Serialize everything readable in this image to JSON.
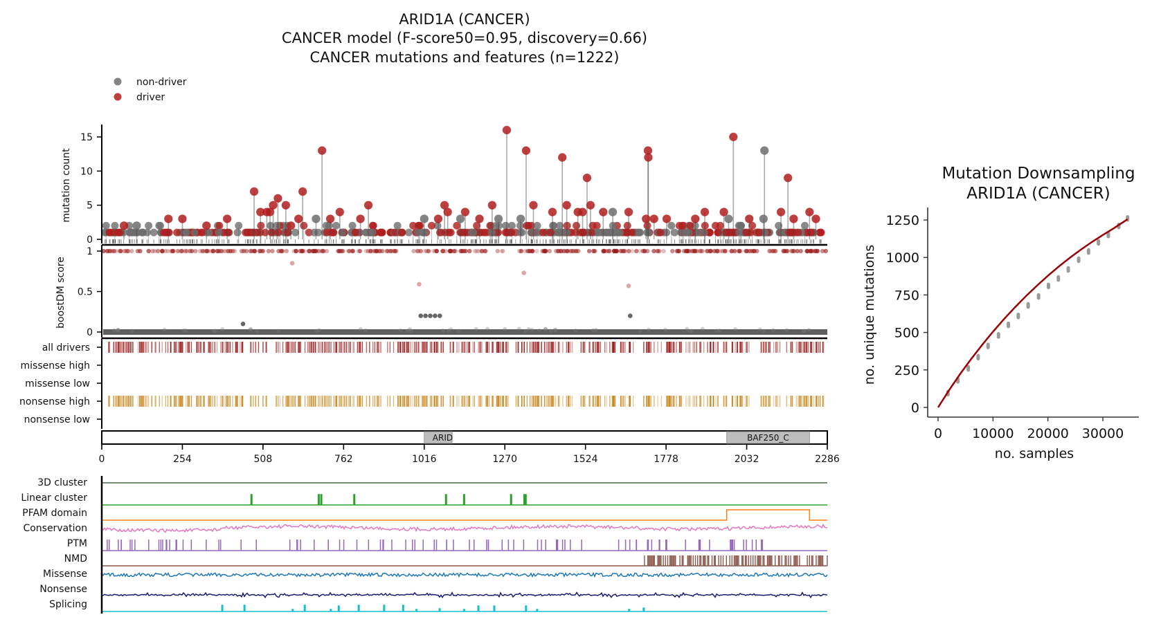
{
  "chart_data": [
    {
      "id": "main",
      "type": "scatter",
      "title_lines": [
        "ARID1A (CANCER)",
        "CANCER model (F-score50=0.95, discovery=0.66)",
        "CANCER mutations and features (n=1222)"
      ],
      "legend": {
        "placement": "top-left",
        "entries": [
          {
            "label": "non-driver",
            "color": "#6e6e6e"
          },
          {
            "label": "driver",
            "color": "#b01e1e"
          }
        ]
      },
      "x_axis": {
        "label": "",
        "range": [
          0,
          2286
        ],
        "ticks": [
          0,
          254,
          508,
          762,
          1016,
          1270,
          1524,
          1778,
          2032,
          2286
        ]
      },
      "lollipop": {
        "type": "lollipop",
        "ylabel": "mutation count",
        "ylim": [
          0,
          17
        ],
        "yticks": [
          0,
          5,
          10,
          15
        ],
        "peaks": [
          {
            "pos": 480,
            "count": 7,
            "class": "driver"
          },
          {
            "pos": 395,
            "count": 3,
            "class": "driver"
          },
          {
            "pos": 540,
            "count": 5,
            "class": "driver"
          },
          {
            "pos": 555,
            "count": 6,
            "class": "driver"
          },
          {
            "pos": 500,
            "count": 4,
            "class": "driver"
          },
          {
            "pos": 520,
            "count": 4,
            "class": "driver"
          },
          {
            "pos": 530,
            "count": 4,
            "class": "driver"
          },
          {
            "pos": 580,
            "count": 5,
            "class": "driver"
          },
          {
            "pos": 596,
            "count": 2,
            "class": "driver"
          },
          {
            "pos": 620,
            "count": 3,
            "class": "driver"
          },
          {
            "pos": 633,
            "count": 7,
            "class": "driver"
          },
          {
            "pos": 675,
            "count": 3,
            "class": "non-driver"
          },
          {
            "pos": 694,
            "count": 13,
            "class": "driver"
          },
          {
            "pos": 720,
            "count": 3,
            "class": "driver"
          },
          {
            "pos": 750,
            "count": 4,
            "class": "driver"
          },
          {
            "pos": 815,
            "count": 3,
            "class": "driver"
          },
          {
            "pos": 840,
            "count": 5,
            "class": "driver"
          },
          {
            "pos": 210,
            "count": 3,
            "class": "driver"
          },
          {
            "pos": 254,
            "count": 3,
            "class": "driver"
          },
          {
            "pos": 110,
            "count": 2,
            "class": "non-driver"
          },
          {
            "pos": 70,
            "count": 2,
            "class": "driver"
          },
          {
            "pos": 330,
            "count": 2,
            "class": "driver"
          },
          {
            "pos": 1016,
            "count": 3,
            "class": "non-driver"
          },
          {
            "pos": 1060,
            "count": 3,
            "class": "driver"
          },
          {
            "pos": 1080,
            "count": 5,
            "class": "driver"
          },
          {
            "pos": 1090,
            "count": 4,
            "class": "driver"
          },
          {
            "pos": 1130,
            "count": 3,
            "class": "non-driver"
          },
          {
            "pos": 1145,
            "count": 4,
            "class": "driver"
          },
          {
            "pos": 1190,
            "count": 3,
            "class": "driver"
          },
          {
            "pos": 1230,
            "count": 5,
            "class": "driver"
          },
          {
            "pos": 1250,
            "count": 3,
            "class": "non-driver"
          },
          {
            "pos": 1276,
            "count": 16,
            "class": "driver"
          },
          {
            "pos": 1320,
            "count": 3,
            "class": "non-driver"
          },
          {
            "pos": 1337,
            "count": 13,
            "class": "driver"
          },
          {
            "pos": 1360,
            "count": 5,
            "class": "driver"
          },
          {
            "pos": 1420,
            "count": 4,
            "class": "driver"
          },
          {
            "pos": 1451,
            "count": 12,
            "class": "driver"
          },
          {
            "pos": 1465,
            "count": 5,
            "class": "driver"
          },
          {
            "pos": 1500,
            "count": 4,
            "class": "driver"
          },
          {
            "pos": 1515,
            "count": 4,
            "class": "driver"
          },
          {
            "pos": 1529,
            "count": 9,
            "class": "driver"
          },
          {
            "pos": 1540,
            "count": 5,
            "class": "driver"
          },
          {
            "pos": 1580,
            "count": 4,
            "class": "driver"
          },
          {
            "pos": 1610,
            "count": 4,
            "class": "non-driver"
          },
          {
            "pos": 1660,
            "count": 4,
            "class": "driver"
          },
          {
            "pos": 1715,
            "count": 3,
            "class": "driver"
          },
          {
            "pos": 1721,
            "count": 13,
            "class": "driver"
          },
          {
            "pos": 1722,
            "count": 12,
            "class": "driver"
          },
          {
            "pos": 1740,
            "count": 3,
            "class": "driver"
          },
          {
            "pos": 1780,
            "count": 3,
            "class": "driver"
          },
          {
            "pos": 1870,
            "count": 3,
            "class": "driver"
          },
          {
            "pos": 1900,
            "count": 4,
            "class": "driver"
          },
          {
            "pos": 1960,
            "count": 4,
            "class": "driver"
          },
          {
            "pos": 1975,
            "count": 3,
            "class": "non-driver"
          },
          {
            "pos": 1990,
            "count": 15,
            "class": "driver"
          },
          {
            "pos": 2040,
            "count": 3,
            "class": "driver"
          },
          {
            "pos": 2088,
            "count": 13,
            "class": "non-driver"
          },
          {
            "pos": 2085,
            "count": 3,
            "class": "non-driver"
          },
          {
            "pos": 2140,
            "count": 4,
            "class": "driver"
          },
          {
            "pos": 2162,
            "count": 9,
            "class": "driver"
          },
          {
            "pos": 2180,
            "count": 3,
            "class": "driver"
          },
          {
            "pos": 2230,
            "count": 4,
            "class": "driver"
          },
          {
            "pos": 2250,
            "count": 3,
            "class": "driver"
          }
        ],
        "baseline": "dense count=1 and count=2 markers along entire protein (mixed driver/non-driver)"
      },
      "boostdm": {
        "type": "scatter",
        "ylabel": "boostDM score",
        "ylim": [
          0,
          1
        ],
        "yticks": [
          0,
          0.5,
          1
        ],
        "band_high": {
          "score": 1.0,
          "class": "driver",
          "range": [
            0,
            2286
          ]
        },
        "band_low": {
          "score": 0.0,
          "class": "non-driver",
          "range": [
            0,
            2286
          ]
        },
        "outliers": [
          {
            "pos": 600,
            "score": 0.85,
            "class": "driver"
          },
          {
            "pos": 1000,
            "score": 0.59,
            "class": "driver"
          },
          {
            "pos": 1330,
            "score": 0.73,
            "class": "driver"
          },
          {
            "pos": 1660,
            "score": 0.57,
            "class": "driver"
          },
          {
            "pos": 1005,
            "score": 0.2,
            "class": "non-driver"
          },
          {
            "pos": 1020,
            "score": 0.2,
            "class": "non-driver"
          },
          {
            "pos": 1035,
            "score": 0.2,
            "class": "non-driver"
          },
          {
            "pos": 1050,
            "score": 0.2,
            "class": "non-driver"
          },
          {
            "pos": 1065,
            "score": 0.2,
            "class": "non-driver"
          },
          {
            "pos": 1665,
            "score": 0.2,
            "class": "non-driver"
          },
          {
            "pos": 445,
            "score": 0.1,
            "class": "non-driver"
          }
        ]
      },
      "tracks": {
        "labels": [
          "all drivers",
          "missense high",
          "missense low",
          "nonsense high",
          "nonsense low"
        ],
        "colors": {
          "all drivers": "#9b1c1c",
          "nonsense high": "#c8861c"
        },
        "filled": [
          "all drivers",
          "nonsense high"
        ]
      },
      "domains": [
        {
          "name": "ARID",
          "start": 1016,
          "end": 1104
        },
        {
          "name": "BAF250_C",
          "start": 1969,
          "end": 2230
        }
      ],
      "features": [
        {
          "label": "3D cluster",
          "color": "#3f6b3f",
          "kind": "flat"
        },
        {
          "label": "Linear cluster",
          "color": "#2ca02c",
          "kind": "spikes",
          "positions": [
            470,
            682,
            690,
            794,
            1083,
            1140,
            1288,
            1330,
            1334
          ]
        },
        {
          "label": "PFAM domain",
          "color": "#ff7f0e",
          "kind": "step",
          "segments": [
            [
              1969,
              2230
            ]
          ]
        },
        {
          "label": "Conservation",
          "color": "#e377c2",
          "kind": "noise"
        },
        {
          "label": "PTM",
          "color": "#9467bd",
          "kind": "bars"
        },
        {
          "label": "NMD",
          "color": "#8c564b",
          "kind": "dense-from",
          "start": 1710
        },
        {
          "label": "Missense",
          "color": "#1f77b4",
          "kind": "noise"
        },
        {
          "label": "Nonsense",
          "color": "#1a1a6e",
          "kind": "low-noise"
        },
        {
          "label": "Splicing",
          "color": "#17becf",
          "kind": "spikes",
          "positions": [
            378,
            448,
            600,
            638,
            720,
            745,
            808,
            888,
            948,
            990,
            1063,
            1140,
            1185,
            1235,
            1335,
            1370,
            1660,
            1706
          ]
        }
      ]
    },
    {
      "id": "downsampling",
      "type": "line",
      "title_lines": [
        "Mutation Downsampling",
        "ARID1A (CANCER)"
      ],
      "xlabel": "no. samples",
      "ylabel": "no. unique mutations",
      "xlim": [
        -1500,
        36500
      ],
      "ylim": [
        -100,
        1330
      ],
      "xticks": [
        0,
        10000,
        20000,
        30000
      ],
      "yticks": [
        0,
        250,
        500,
        750,
        1000,
        1250
      ],
      "fit_color": "#9b0000",
      "fit_curve": {
        "x": [
          0,
          2000,
          4000,
          6000,
          8000,
          10000,
          12000,
          14000,
          16000,
          18000,
          20000,
          22000,
          24000,
          26000,
          28000,
          30000,
          32000,
          34500
        ],
        "y": [
          0,
          115,
          222,
          322,
          416,
          505,
          589,
          668,
          742,
          812,
          878,
          940,
          998,
          1052,
          1103,
          1150,
          1195,
          1255
        ]
      },
      "samples": {
        "x": [
          1800,
          3600,
          5500,
          7300,
          9100,
          11000,
          12800,
          14600,
          16400,
          18300,
          20100,
          21900,
          23700,
          25600,
          27400,
          29200,
          31000,
          32900,
          34500
        ],
        "y": [
          95,
          180,
          260,
          335,
          410,
          480,
          550,
          610,
          680,
          740,
          810,
          860,
          920,
          985,
          1040,
          1100,
          1150,
          1210,
          1260
        ]
      }
    }
  ]
}
